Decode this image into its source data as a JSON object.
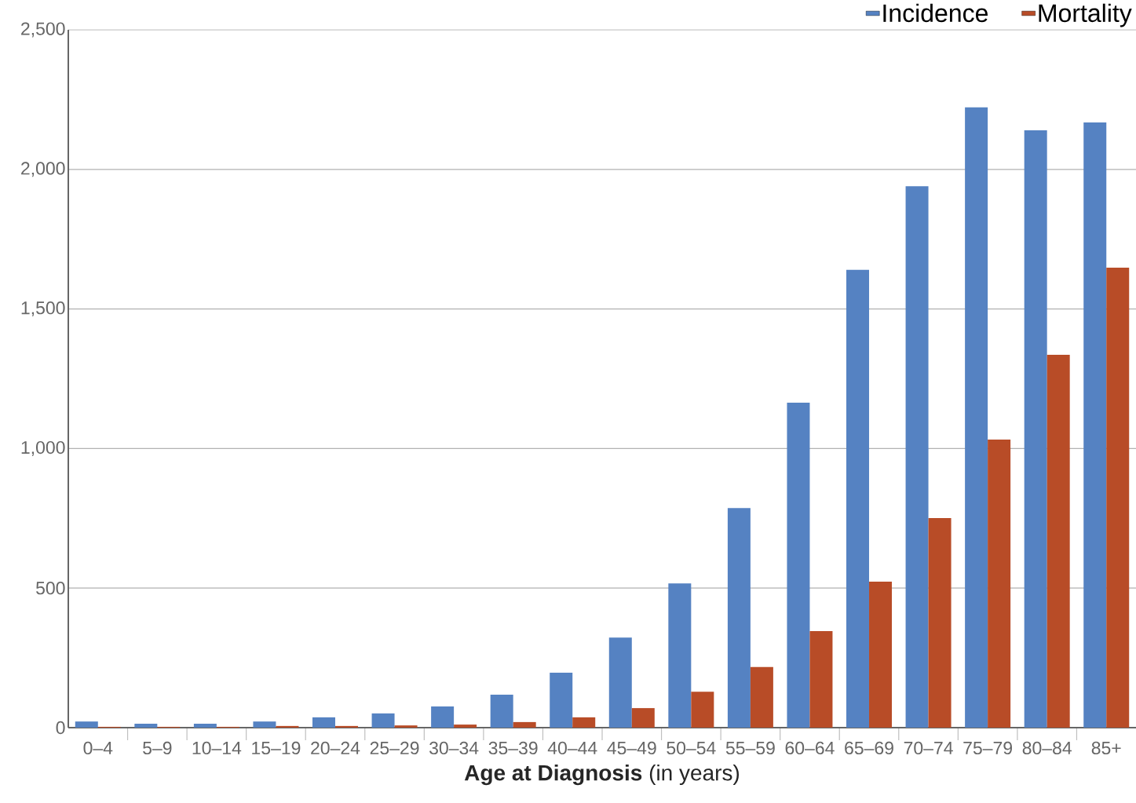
{
  "chart_data": {
    "type": "bar",
    "xlabel": "**Age at Diagnosis** (in years)",
    "categories": [
      "0–4",
      "5–9",
      "10–14",
      "15–19",
      "20–24",
      "25–29",
      "30–34",
      "35–39",
      "40–44",
      "45–49",
      "50–54",
      "55–59",
      "60–64",
      "65–69",
      "70–74",
      "75–79",
      "80–84",
      "85+"
    ],
    "series": [
      {
        "name": "Incidence",
        "color": "#5582c2",
        "values": [
          22,
          14,
          14,
          22,
          37,
          51,
          76,
          118,
          197,
          323,
          517,
          787,
          1164,
          1640,
          1940,
          2222,
          2140,
          2168
        ]
      },
      {
        "name": "Mortality",
        "color": "#b84c27",
        "values": [
          3,
          3,
          3,
          6,
          6,
          8,
          11,
          20,
          37,
          70,
          129,
          217,
          346,
          523,
          751,
          1032,
          1336,
          1648
        ]
      }
    ],
    "ylim": [
      0,
      2500
    ],
    "yticks": [
      {
        "value": 0,
        "label": "0"
      },
      {
        "value": 500,
        "label": "500"
      },
      {
        "value": 1000,
        "label": "1,000"
      },
      {
        "value": 1500,
        "label": "1,500"
      },
      {
        "value": 2000,
        "label": "2,000"
      },
      {
        "value": 2500,
        "label": "2,500"
      }
    ],
    "grid": "y",
    "legend": "top right"
  }
}
